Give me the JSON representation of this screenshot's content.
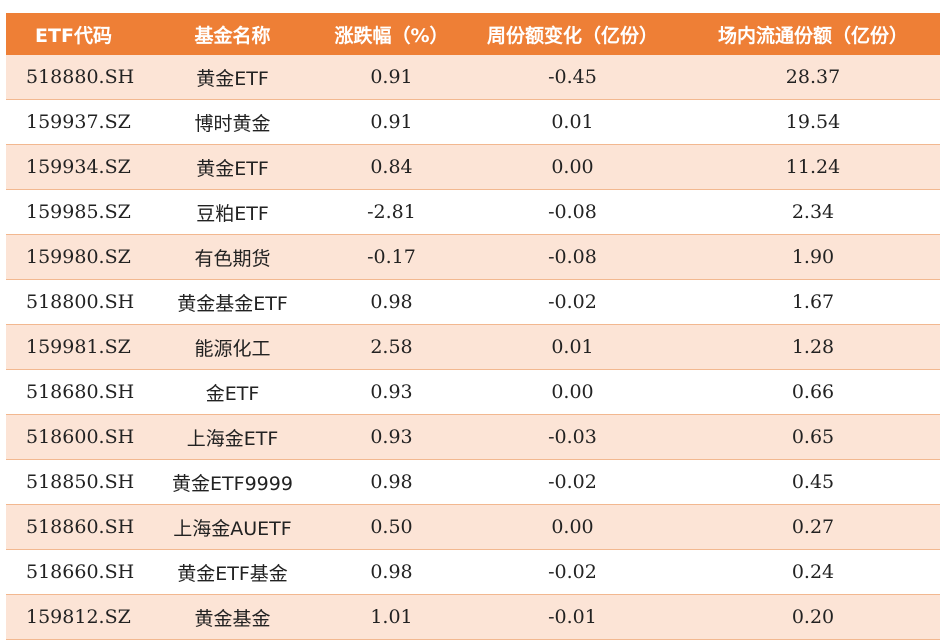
{
  "headers": [
    "ETF代码",
    "基金名称",
    "涨跌幅（%）",
    "周份额变化（亿份）",
    "场内流通份额（亿份）"
  ],
  "rows": [
    [
      "518880.SH",
      "黄金ETF",
      "0.91",
      "-0.45",
      "28.37"
    ],
    [
      "159937.SZ",
      "博时黄金",
      "0.91",
      "0.01",
      "19.54"
    ],
    [
      "159934.SZ",
      "黄金ETF",
      "0.84",
      "0.00",
      "11.24"
    ],
    [
      "159985.SZ",
      "豆粕ETF",
      "-2.81",
      "-0.08",
      "2.34"
    ],
    [
      "159980.SZ",
      "有色期货",
      "-0.17",
      "-0.08",
      "1.90"
    ],
    [
      "518800.SH",
      "黄金基金ETF",
      "0.98",
      "-0.02",
      "1.67"
    ],
    [
      "159981.SZ",
      "能源化工",
      "2.58",
      "0.01",
      "1.28"
    ],
    [
      "518680.SH",
      "金ETF",
      "0.93",
      "0.00",
      "0.66"
    ],
    [
      "518600.SH",
      "上海金ETF",
      "0.93",
      "-0.03",
      "0.65"
    ],
    [
      "518850.SH",
      "黄金ETF9999",
      "0.98",
      "-0.02",
      "0.45"
    ],
    [
      "518860.SH",
      "上海金AUETF",
      "0.50",
      "0.00",
      "0.27"
    ],
    [
      "518660.SH",
      "黄金ETF基金",
      "0.98",
      "-0.02",
      "0.24"
    ],
    [
      "159812.SZ",
      "黄金基金",
      "1.01",
      "-0.01",
      "0.20"
    ]
  ],
  "colors": {
    "header_bg": "#ee7f36",
    "header_text": "#ffffff",
    "row_odd_bg": "#fce4d6",
    "row_even_bg": "#ffffff"
  }
}
